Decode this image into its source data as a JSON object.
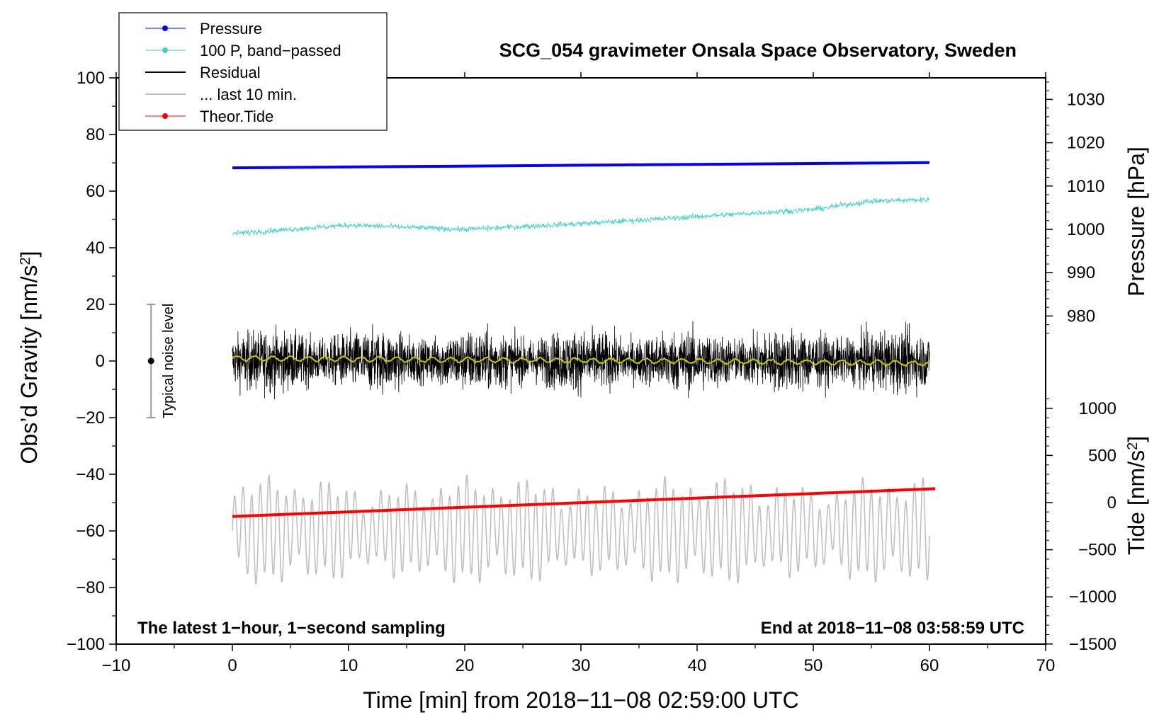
{
  "chart_data": {
    "type": "line",
    "title": "SCG_054 gravimeter Onsala Space Observatory, Sweden",
    "xlabel": "Time [min] from 2018−11−08 02:59:00 UTC",
    "xlim": [
      -10,
      70
    ],
    "xticks": [
      -10,
      0,
      10,
      20,
      30,
      40,
      50,
      60,
      70
    ],
    "xtick_labels": [
      "−10",
      "0",
      "10",
      "20",
      "30",
      "40",
      "50",
      "60",
      "70"
    ],
    "left_axis": {
      "label": "Obs’d Gravity [nm/s²]",
      "label_main": "Obs’d Gravity [nm/s",
      "label_sup": "2",
      "label_end": "]",
      "ylim": [
        -100,
        100
      ],
      "ticks": [
        -100,
        -80,
        -60,
        -40,
        -20,
        0,
        20,
        40,
        60,
        80,
        100
      ],
      "tick_labels": [
        "−100",
        "−80",
        "−60",
        "−40",
        "−20",
        "0",
        "20",
        "40",
        "60",
        "80",
        "100"
      ]
    },
    "right_axis_pressure": {
      "label": "Pressure [hPa]",
      "ticks": [
        980,
        990,
        1000,
        1010,
        1020,
        1030
      ],
      "tick_labels": [
        "980",
        "990",
        "1000",
        "1010",
        "1020",
        "1030"
      ],
      "gravity_at_1000": 46.5,
      "gravity_per_hpa": 1.53
    },
    "right_axis_tide": {
      "label": "Tide [nm/s²]",
      "label_main": "Tide [nm/s",
      "label_sup": "2",
      "label_end": "]",
      "ticks": [
        -1500,
        -1000,
        -500,
        0,
        500,
        1000
      ],
      "tick_labels": [
        "−1500",
        "−1000",
        "−500",
        "0",
        "500",
        "1000"
      ],
      "gravity_at_0": -50,
      "gravity_per_unit": 0.0333
    },
    "series": [
      {
        "name": "Pressure",
        "color": "#0000ff",
        "axis": "pressure_hPa",
        "x": [
          0,
          15,
          30,
          45,
          60
        ],
        "y": [
          1014.2,
          1014.5,
          1014.8,
          1015.1,
          1015.4
        ]
      },
      {
        "name": "100 P, band−passed",
        "color": "#40d0d0",
        "axis": "gravity",
        "x": [
          0,
          10,
          20,
          30,
          40,
          50,
          55,
          60
        ],
        "y": [
          45,
          48,
          46.5,
          48.5,
          51,
          53.5,
          56.5,
          57
        ]
      },
      {
        "name": "Residual",
        "color": "#000000",
        "axis": "gravity",
        "x": [
          0,
          10,
          20,
          30,
          40,
          50,
          60
        ],
        "y": [
          0,
          0,
          0,
          0,
          0,
          0,
          0
        ],
        "noise_amplitude": 13
      },
      {
        "name": "... last 10 min.",
        "color": "#c0c0c0",
        "axis": "gravity",
        "x": [
          0,
          10,
          20,
          30,
          40,
          50,
          60
        ],
        "y": [
          -60,
          -60,
          -60,
          -60,
          -60,
          -60,
          -60
        ],
        "oscillation_amplitude": 12
      },
      {
        "name": "Theor.Tide",
        "color": "#ff0000",
        "axis": "tide",
        "x": [
          0,
          60.5
        ],
        "y": [
          -147,
          147
        ]
      },
      {
        "name": "Smoothed residual",
        "color": "#c8c800",
        "axis": "gravity",
        "x": [
          0,
          10,
          20,
          30,
          40,
          50,
          60
        ],
        "y": [
          1,
          0.7,
          0.4,
          0.2,
          0,
          -0.4,
          -0.8
        ],
        "in_legend": false
      }
    ],
    "noise_indicator": {
      "label": "Typical noise level",
      "x": -7,
      "center": 0,
      "low": -20,
      "high": 20
    },
    "annotations": {
      "bottom_left": "The latest 1−hour, 1−second sampling",
      "bottom_right": "End at 2018−11−08 03:58:59 UTC"
    },
    "legend": [
      {
        "label": "Pressure",
        "color": "#0000ff",
        "marker": true,
        "width": 1
      },
      {
        "label": "100 P, band−passed",
        "color": "#40d0d0",
        "marker": true,
        "width": 1
      },
      {
        "label": "Residual",
        "color": "#000000",
        "marker": false,
        "width": 2
      },
      {
        "label": "... last 10 min.",
        "color": "#c0c0c0",
        "marker": false,
        "width": 2
      },
      {
        "label": "Theor.Tide",
        "color": "#ff0000",
        "marker": true,
        "width": 1
      }
    ],
    "legend_position": "top-left"
  }
}
